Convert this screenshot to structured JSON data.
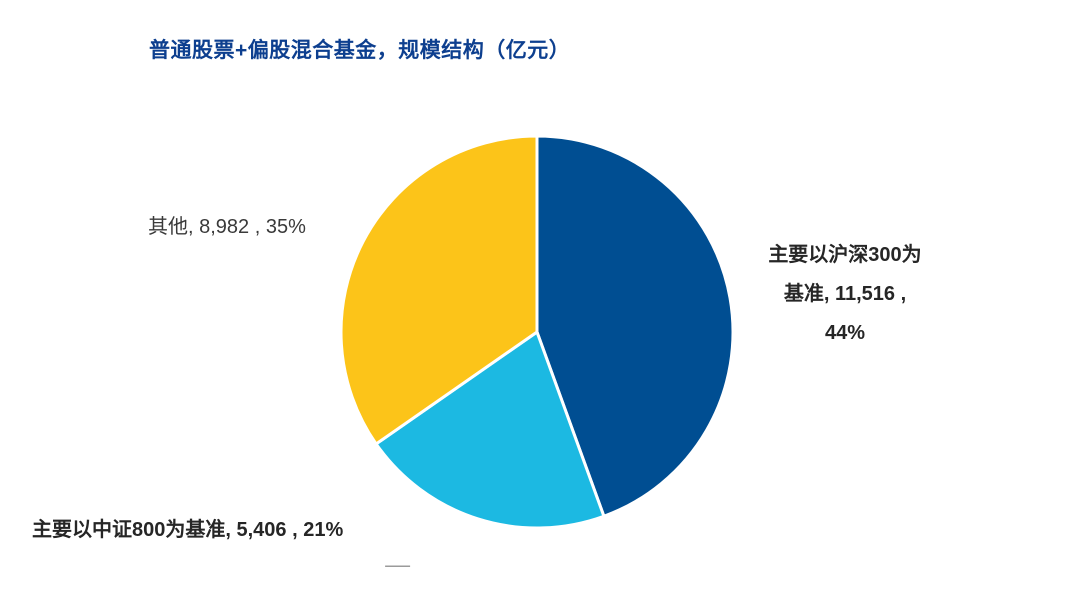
{
  "title": "普通股票+偏股混合基金，规模结构（亿元）",
  "chart_data": {
    "type": "pie",
    "title": "普通股票+偏股混合基金，规模结构（亿元）",
    "slices": [
      {
        "name": "主要以沪深300为基准",
        "value": 11516,
        "percent": "44%",
        "color": "#004e92",
        "label": "主要以沪深300为基准, 11,516 , 44%",
        "label_lines": [
          "主要以沪深300为",
          "基准, 11,516 ,",
          "44%"
        ]
      },
      {
        "name": "主要以中证800为基准",
        "value": 5406,
        "percent": "21%",
        "color": "#1cb9e2",
        "label": "主要以中证800为基准, 5,406 , 21%"
      },
      {
        "name": "其他",
        "value": 8982,
        "percent": "35%",
        "color": "#fcc419",
        "label": "其他, 8,982 , 35%"
      }
    ],
    "start_angle": "12 o'clock",
    "direction": "clockwise",
    "slice_border": "#ffffff"
  }
}
